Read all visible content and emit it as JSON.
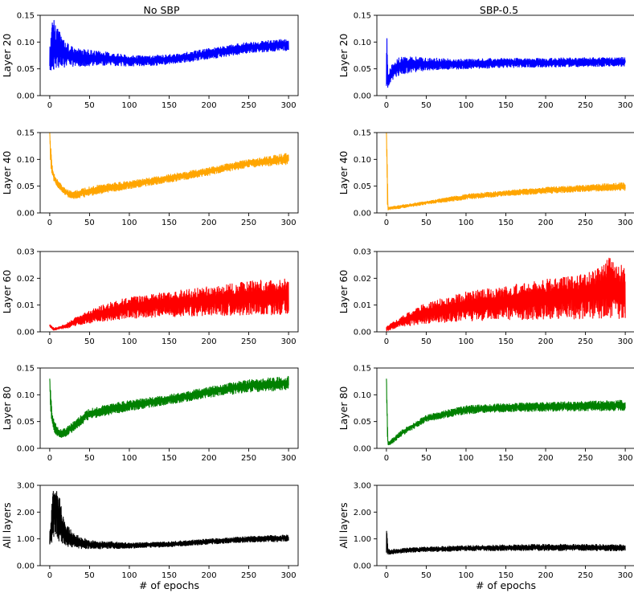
{
  "figure": {
    "column_titles": [
      "No SBP",
      "SBP-0.5"
    ],
    "xlabel": "# of epochs"
  },
  "chart_data": [
    {
      "type": "line",
      "column": "No SBP",
      "row": 1,
      "ylabel": "Layer 20",
      "color": "#0000ff",
      "ylim": [
        0,
        0.15
      ],
      "yticks": [
        0.0,
        0.05,
        0.1,
        0.15
      ],
      "ytick_labels": [
        "0.00",
        "0.05",
        "0.10",
        "0.15"
      ],
      "xlim": [
        -12,
        312
      ],
      "xticks": [
        0,
        50,
        100,
        150,
        200,
        250,
        300
      ],
      "xtick_labels": [
        "0",
        "50",
        "100",
        "150",
        "200",
        "250",
        "300"
      ],
      "series": [
        {
          "x": [
            0,
            1,
            3,
            5,
            8,
            12,
            20,
            30,
            50,
            80,
            100,
            130,
            160,
            200,
            250,
            300
          ],
          "upper": [
            0.115,
            0.11,
            0.14,
            0.15,
            0.13,
            0.12,
            0.1,
            0.09,
            0.085,
            0.08,
            0.075,
            0.075,
            0.078,
            0.088,
            0.1,
            0.106
          ],
          "lower": [
            0.042,
            0.04,
            0.045,
            0.048,
            0.05,
            0.052,
            0.053,
            0.054,
            0.055,
            0.055,
            0.055,
            0.056,
            0.06,
            0.068,
            0.08,
            0.084
          ]
        }
      ]
    },
    {
      "type": "line",
      "column": "SBP-0.5",
      "row": 1,
      "ylabel": "Layer 20",
      "color": "#0000ff",
      "ylim": [
        0,
        0.15
      ],
      "yticks": [
        0.0,
        0.05,
        0.1,
        0.15
      ],
      "ytick_labels": [
        "0.00",
        "0.05",
        "0.10",
        "0.15"
      ],
      "xlim": [
        -12,
        312
      ],
      "xticks": [
        0,
        50,
        100,
        150,
        200,
        250,
        300
      ],
      "xtick_labels": [
        "0",
        "50",
        "100",
        "150",
        "200",
        "250",
        "300"
      ],
      "series": [
        {
          "x": [
            0,
            1,
            2,
            5,
            10,
            20,
            40,
            60,
            100,
            150,
            200,
            250,
            300
          ],
          "upper": [
            0.11,
            0.11,
            0.04,
            0.055,
            0.065,
            0.075,
            0.072,
            0.07,
            0.068,
            0.07,
            0.07,
            0.071,
            0.072
          ],
          "lower": [
            0.005,
            0.01,
            0.015,
            0.025,
            0.032,
            0.04,
            0.045,
            0.048,
            0.05,
            0.052,
            0.053,
            0.054,
            0.055
          ]
        }
      ]
    },
    {
      "type": "line",
      "column": "No SBP",
      "row": 2,
      "ylabel": "Layer 40",
      "color": "#ffa500",
      "ylim": [
        0,
        0.15
      ],
      "yticks": [
        0.0,
        0.05,
        0.1,
        0.15
      ],
      "ytick_labels": [
        "0.00",
        "0.05",
        "0.10",
        "0.15"
      ],
      "xlim": [
        -12,
        312
      ],
      "xticks": [
        0,
        50,
        100,
        150,
        200,
        250,
        300
      ],
      "xtick_labels": [
        "0",
        "50",
        "100",
        "150",
        "200",
        "250",
        "300"
      ],
      "series": [
        {
          "x": [
            0,
            1,
            3,
            5,
            10,
            15,
            20,
            25,
            30,
            40,
            50,
            100,
            150,
            200,
            250,
            300
          ],
          "upper": [
            0.15,
            0.13,
            0.09,
            0.075,
            0.062,
            0.052,
            0.045,
            0.042,
            0.04,
            0.045,
            0.05,
            0.06,
            0.072,
            0.085,
            0.1,
            0.112
          ],
          "lower": [
            0.15,
            0.09,
            0.07,
            0.06,
            0.048,
            0.04,
            0.033,
            0.028,
            0.026,
            0.028,
            0.032,
            0.045,
            0.057,
            0.07,
            0.085,
            0.09
          ]
        }
      ]
    },
    {
      "type": "line",
      "column": "SBP-0.5",
      "row": 2,
      "ylabel": "Layer 40",
      "color": "#ffa500",
      "ylim": [
        0,
        0.15
      ],
      "yticks": [
        0.0,
        0.05,
        0.1,
        0.15
      ],
      "ytick_labels": [
        "0.00",
        "0.05",
        "0.10",
        "0.15"
      ],
      "xlim": [
        -12,
        312
      ],
      "xticks": [
        0,
        50,
        100,
        150,
        200,
        250,
        300
      ],
      "xtick_labels": [
        "0",
        "50",
        "100",
        "150",
        "200",
        "250",
        "300"
      ],
      "series": [
        {
          "x": [
            0,
            1,
            2,
            5,
            20,
            50,
            100,
            150,
            200,
            250,
            300
          ],
          "upper": [
            0.15,
            0.12,
            0.01,
            0.012,
            0.015,
            0.022,
            0.035,
            0.042,
            0.048,
            0.052,
            0.057
          ],
          "lower": [
            0.15,
            0.01,
            0.005,
            0.006,
            0.009,
            0.016,
            0.025,
            0.032,
            0.036,
            0.04,
            0.042
          ]
        }
      ]
    },
    {
      "type": "line",
      "column": "No SBP",
      "row": 3,
      "ylabel": "Layer 60",
      "color": "#ff0000",
      "ylim": [
        0,
        0.03
      ],
      "yticks": [
        0.0,
        0.01,
        0.02,
        0.03
      ],
      "ytick_labels": [
        "0.00",
        "0.01",
        "0.02",
        "0.03"
      ],
      "xlim": [
        -12,
        312
      ],
      "xticks": [
        0,
        50,
        100,
        150,
        200,
        250,
        300
      ],
      "xtick_labels": [
        "0",
        "50",
        "100",
        "150",
        "200",
        "250",
        "300"
      ],
      "series": [
        {
          "x": [
            0,
            5,
            10,
            20,
            30,
            50,
            75,
            100,
            150,
            200,
            250,
            300
          ],
          "upper": [
            0.003,
            0.0015,
            0.0018,
            0.003,
            0.005,
            0.008,
            0.011,
            0.013,
            0.015,
            0.017,
            0.019,
            0.02
          ],
          "lower": [
            0.0015,
            0.0006,
            0.0008,
            0.0012,
            0.002,
            0.0032,
            0.0042,
            0.005,
            0.0056,
            0.006,
            0.0062,
            0.0064
          ]
        }
      ]
    },
    {
      "type": "line",
      "column": "SBP-0.5",
      "row": 3,
      "ylabel": "Layer 60",
      "color": "#ff0000",
      "ylim": [
        0,
        0.03
      ],
      "yticks": [
        0.0,
        0.01,
        0.02,
        0.03
      ],
      "ytick_labels": [
        "0.00",
        "0.01",
        "0.02",
        "0.03"
      ],
      "xlim": [
        -12,
        312
      ],
      "xticks": [
        0,
        50,
        100,
        150,
        200,
        250,
        300
      ],
      "xtick_labels": [
        "0",
        "50",
        "100",
        "150",
        "200",
        "250",
        "300"
      ],
      "series": [
        {
          "x": [
            0,
            5,
            10,
            20,
            50,
            100,
            150,
            200,
            250,
            280,
            300
          ],
          "upper": [
            0.002,
            0.003,
            0.004,
            0.006,
            0.011,
            0.015,
            0.017,
            0.02,
            0.022,
            0.028,
            0.024
          ],
          "lower": [
            0.0002,
            0.0008,
            0.0012,
            0.002,
            0.003,
            0.004,
            0.0045,
            0.0047,
            0.0048,
            0.0049,
            0.005
          ]
        }
      ]
    },
    {
      "type": "line",
      "column": "No SBP",
      "row": 4,
      "ylabel": "Layer 80",
      "color": "#008000",
      "ylim": [
        0,
        0.15
      ],
      "yticks": [
        0.0,
        0.05,
        0.1,
        0.15
      ],
      "ytick_labels": [
        "0.00",
        "0.05",
        "0.10",
        "0.15"
      ],
      "xlim": [
        -12,
        312
      ],
      "xticks": [
        0,
        50,
        100,
        150,
        200,
        250,
        300
      ],
      "xtick_labels": [
        "0",
        "50",
        "100",
        "150",
        "200",
        "250",
        "300"
      ],
      "series": [
        {
          "x": [
            0,
            1,
            3,
            6,
            10,
            15,
            20,
            30,
            50,
            100,
            150,
            200,
            250,
            300
          ],
          "upper": [
            0.13,
            0.11,
            0.07,
            0.05,
            0.04,
            0.035,
            0.038,
            0.05,
            0.075,
            0.09,
            0.1,
            0.115,
            0.128,
            0.135
          ],
          "lower": [
            0.13,
            0.07,
            0.045,
            0.03,
            0.022,
            0.02,
            0.022,
            0.032,
            0.055,
            0.07,
            0.082,
            0.095,
            0.105,
            0.108
          ]
        }
      ]
    },
    {
      "type": "line",
      "column": "SBP-0.5",
      "row": 4,
      "ylabel": "Layer 80",
      "color": "#008000",
      "ylim": [
        0,
        0.15
      ],
      "yticks": [
        0.0,
        0.05,
        0.1,
        0.15
      ],
      "ytick_labels": [
        "0.00",
        "0.05",
        "0.10",
        "0.15"
      ],
      "xlim": [
        -12,
        312
      ],
      "xticks": [
        0,
        50,
        100,
        150,
        200,
        250,
        300
      ],
      "xtick_labels": [
        "0",
        "50",
        "100",
        "150",
        "200",
        "250",
        "300"
      ],
      "series": [
        {
          "x": [
            0,
            1,
            2,
            5,
            10,
            20,
            50,
            100,
            150,
            200,
            250,
            300
          ],
          "upper": [
            0.13,
            0.1,
            0.012,
            0.015,
            0.022,
            0.035,
            0.062,
            0.08,
            0.084,
            0.086,
            0.088,
            0.09
          ],
          "lower": [
            0.13,
            0.008,
            0.005,
            0.007,
            0.012,
            0.024,
            0.05,
            0.064,
            0.068,
            0.069,
            0.07,
            0.07
          ]
        }
      ]
    },
    {
      "type": "line",
      "column": "No SBP",
      "row": 5,
      "ylabel": "All layers",
      "xlabel": "# of epochs",
      "color": "#000000",
      "ylim": [
        0,
        3.0
      ],
      "yticks": [
        0.0,
        1.0,
        2.0,
        3.0
      ],
      "ytick_labels": [
        "0.00",
        "1.00",
        "2.00",
        "3.00"
      ],
      "xlim": [
        -12,
        312
      ],
      "xticks": [
        0,
        50,
        100,
        150,
        200,
        250,
        300
      ],
      "xtick_labels": [
        "0",
        "50",
        "100",
        "150",
        "200",
        "250",
        "300"
      ],
      "series": [
        {
          "x": [
            0,
            1,
            2,
            3,
            5,
            8,
            10,
            12,
            15,
            20,
            30,
            50,
            100,
            150,
            200,
            250,
            300
          ],
          "upper": [
            1.3,
            1.4,
            2.0,
            2.8,
            3.0,
            3.0,
            2.9,
            2.6,
            2.2,
            1.6,
            1.2,
            0.95,
            0.85,
            0.9,
            1.0,
            1.1,
            1.15
          ],
          "lower": [
            0.7,
            0.65,
            0.8,
            0.9,
            1.0,
            0.95,
            0.9,
            0.85,
            0.8,
            0.72,
            0.65,
            0.62,
            0.65,
            0.7,
            0.8,
            0.88,
            0.9
          ]
        }
      ]
    },
    {
      "type": "line",
      "column": "SBP-0.5",
      "row": 5,
      "ylabel": "All layers",
      "xlabel": "# of epochs",
      "color": "#000000",
      "ylim": [
        0,
        3.0
      ],
      "yticks": [
        0.0,
        1.0,
        2.0,
        3.0
      ],
      "ytick_labels": [
        "0.00",
        "1.00",
        "2.00",
        "3.00"
      ],
      "xlim": [
        -12,
        312
      ],
      "xticks": [
        0,
        50,
        100,
        150,
        200,
        250,
        300
      ],
      "xtick_labels": [
        "0",
        "50",
        "100",
        "150",
        "200",
        "250",
        "300"
      ],
      "series": [
        {
          "x": [
            0,
            1,
            2,
            5,
            10,
            20,
            50,
            100,
            150,
            200,
            250,
            300
          ],
          "upper": [
            1.3,
            1.3,
            0.65,
            0.6,
            0.62,
            0.65,
            0.7,
            0.75,
            0.78,
            0.8,
            0.8,
            0.78
          ],
          "lower": [
            0.4,
            0.4,
            0.4,
            0.42,
            0.45,
            0.48,
            0.52,
            0.55,
            0.56,
            0.56,
            0.56,
            0.55
          ]
        }
      ]
    }
  ]
}
